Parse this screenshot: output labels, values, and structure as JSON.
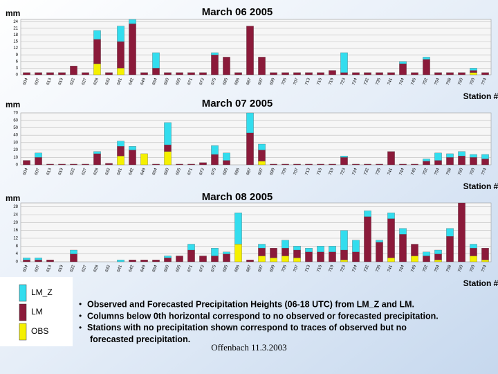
{
  "chart_data": [
    {
      "type": "bar",
      "title": "March 06 2005",
      "ylabel": "mm",
      "xlabel": "Station #",
      "categories": [
        "604",
        "607",
        "613",
        "619",
        "622",
        "627",
        "628",
        "632",
        "641",
        "642",
        "649",
        "654",
        "660",
        "665",
        "671",
        "672",
        "675",
        "685",
        "686",
        "687",
        "697",
        "699",
        "705",
        "707",
        "713",
        "716",
        "719",
        "723",
        "724",
        "732",
        "735",
        "741",
        "744",
        "746",
        "752",
        "754",
        "758",
        "760",
        "763",
        "774"
      ],
      "series": [
        {
          "values": [
            0,
            0,
            0,
            0,
            0,
            0,
            4,
            0,
            7,
            2,
            0,
            7,
            0,
            0,
            0,
            0,
            1,
            0,
            0,
            0,
            0,
            0,
            0,
            0,
            0,
            0,
            0,
            9,
            0,
            0,
            0,
            0,
            1,
            0,
            1,
            0,
            0,
            0,
            1,
            0
          ]
        },
        {
          "values": [
            1,
            1,
            1,
            1,
            4,
            1,
            11,
            1,
            12,
            23,
            1,
            3,
            1,
            1,
            1,
            1,
            9,
            8,
            1,
            22,
            8,
            1,
            1,
            1,
            1,
            1,
            2,
            1,
            1,
            1,
            1,
            1,
            5,
            1,
            7,
            1,
            1,
            1,
            1,
            1
          ]
        },
        {
          "values": [
            0,
            0,
            0,
            0,
            0,
            0,
            5,
            0,
            3,
            0,
            0,
            0,
            0,
            0,
            0,
            0,
            0,
            0,
            0,
            0,
            0,
            0,
            0,
            0,
            0,
            0,
            0,
            0,
            0,
            0,
            0,
            0,
            0,
            0,
            0,
            0,
            0,
            0,
            1,
            0
          ]
        }
      ],
      "ylim": [
        0,
        25
      ],
      "yticks": [
        0,
        3,
        6,
        9,
        12,
        15,
        18,
        21,
        24
      ],
      "grid": true,
      "stacked": true
    },
    {
      "type": "bar",
      "title": "March 07 2005",
      "ylabel": "mm",
      "xlabel": "Station #",
      "categories": [
        "604",
        "607",
        "613",
        "619",
        "622",
        "627",
        "628",
        "632",
        "641",
        "642",
        "649",
        "654",
        "660",
        "665",
        "671",
        "672",
        "675",
        "685",
        "686",
        "687",
        "697",
        "699",
        "705",
        "707",
        "713",
        "716",
        "719",
        "723",
        "724",
        "732",
        "735",
        "741",
        "744",
        "746",
        "752",
        "754",
        "758",
        "760",
        "763",
        "774"
      ],
      "series": [
        {
          "values": [
            0,
            6,
            0,
            0,
            0,
            0,
            3,
            0,
            7,
            5,
            0,
            0,
            30,
            0,
            0,
            0,
            12,
            10,
            0,
            27,
            8,
            0,
            0,
            0,
            0,
            0,
            0,
            2,
            0,
            0,
            0,
            0,
            0,
            0,
            3,
            10,
            5,
            6,
            4,
            6
          ]
        },
        {
          "values": [
            6,
            10,
            1,
            1,
            1,
            1,
            15,
            2,
            13,
            20,
            0,
            1,
            9,
            1,
            1,
            3,
            14,
            6,
            0,
            43,
            15,
            1,
            1,
            1,
            1,
            1,
            1,
            10,
            1,
            1,
            1,
            18,
            1,
            1,
            5,
            6,
            10,
            12,
            10,
            8
          ]
        },
        {
          "values": [
            0,
            0,
            0,
            0,
            0,
            0,
            0,
            0,
            12,
            0,
            15,
            0,
            18,
            0,
            0,
            0,
            0,
            0,
            0,
            0,
            5,
            0,
            0,
            0,
            0,
            0,
            0,
            0,
            0,
            0,
            0,
            0,
            0,
            0,
            0,
            0,
            0,
            0,
            0,
            0
          ]
        }
      ],
      "ylim": [
        0,
        70
      ],
      "yticks": [
        0,
        10,
        20,
        30,
        40,
        50,
        60,
        70
      ],
      "grid": true,
      "stacked": true
    },
    {
      "type": "bar",
      "title": "March 08 2005",
      "ylabel": "mm",
      "xlabel": "Station #",
      "categories": [
        "604",
        "607",
        "613",
        "619",
        "622",
        "627",
        "628",
        "632",
        "641",
        "642",
        "649",
        "654",
        "660",
        "665",
        "671",
        "672",
        "675",
        "685",
        "686",
        "687",
        "697",
        "699",
        "705",
        "707",
        "713",
        "716",
        "719",
        "723",
        "724",
        "732",
        "735",
        "741",
        "744",
        "746",
        "752",
        "754",
        "758",
        "760",
        "763",
        "774"
      ],
      "series": [
        {
          "values": [
            1,
            1,
            0,
            0,
            2,
            0,
            0,
            0,
            1,
            0,
            0,
            0,
            1,
            0,
            3,
            0,
            4,
            1,
            16,
            0,
            2,
            0,
            4,
            2,
            2,
            3,
            3,
            10,
            6,
            3,
            1,
            3,
            3,
            0,
            2,
            2,
            4,
            0,
            2,
            0
          ]
        },
        {
          "values": [
            1,
            1,
            1,
            0,
            4,
            0,
            0,
            0,
            0,
            1,
            1,
            1,
            2,
            3,
            6,
            3,
            3,
            4,
            0,
            1,
            4,
            5,
            4,
            4,
            5,
            5,
            5,
            5,
            5,
            23,
            10,
            20,
            14,
            6,
            3,
            3,
            13,
            30,
            4,
            6
          ]
        },
        {
          "values": [
            0,
            0,
            0,
            0,
            0,
            0,
            0,
            0,
            0,
            0,
            0,
            0,
            0,
            0,
            0,
            0,
            0,
            0,
            9,
            0,
            3,
            2,
            3,
            2,
            0,
            0,
            0,
            1,
            0,
            0,
            0,
            2,
            0,
            3,
            0,
            1,
            0,
            0,
            3,
            1
          ]
        }
      ],
      "ylim": [
        0,
        30
      ],
      "yticks": [
        0,
        4,
        8,
        12,
        16,
        20,
        24,
        28
      ],
      "grid": true,
      "stacked": true
    }
  ],
  "legend": [
    {
      "name": "LM_Z",
      "color": "#33ddee"
    },
    {
      "name": "LM",
      "color": "#8b1a3a"
    },
    {
      "name": "OBS",
      "color": "#f5f000"
    }
  ],
  "notes": [
    "Observed and Forecasted Precipitation Heights (06-18 UTC) from LM_Z and LM.",
    "Columns below 0th horizontal correspond to no observed or forecasted precipitation.",
    "Stations with no precipitation shown correspond to traces of observed  but no forecasted precipitation."
  ],
  "footer": "Offenbach 11.3.2003"
}
